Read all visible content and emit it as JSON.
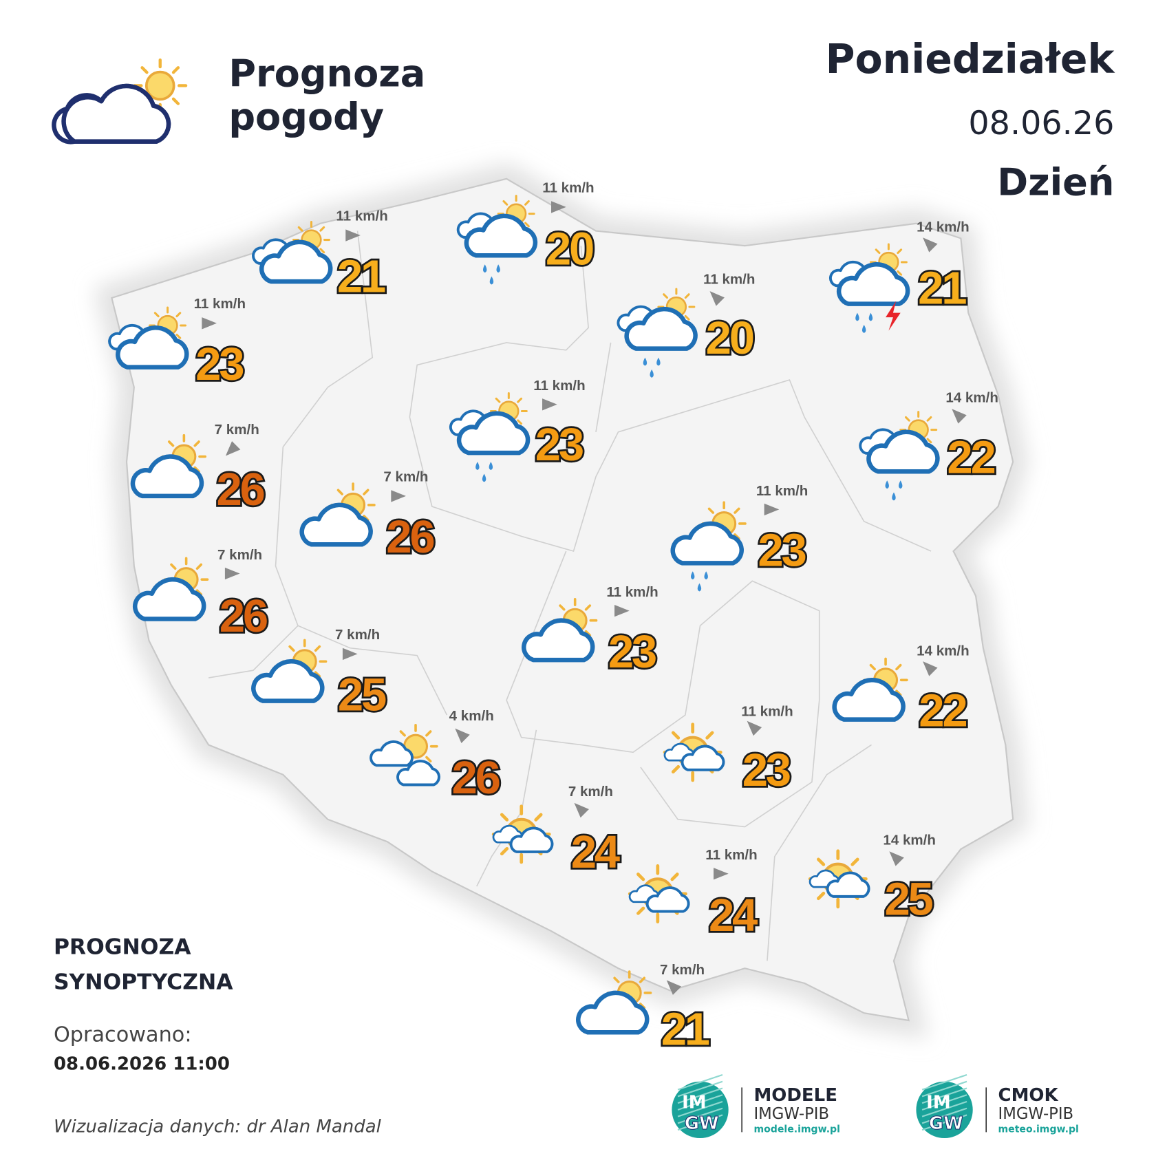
{
  "header": {
    "title": [
      "Prognoza",
      "pogody"
    ],
    "day": "Poniedziałek",
    "date": "08.06.26",
    "period": "Dzień"
  },
  "locations": [
    {
      "wind": "11 km/h",
      "temperature": 21
    },
    {
      "wind": "11 km/h",
      "temperature": 20
    },
    {
      "wind": "11 km/h",
      "temperature": 23
    },
    {
      "wind": "11 km/h",
      "temperature": 20
    },
    {
      "wind": "14 km/h",
      "temperature": 21
    },
    {
      "wind": "11 km/h",
      "temperature": 23
    },
    {
      "wind": "14 km/h",
      "temperature": 22
    },
    {
      "wind": "7 km/h",
      "temperature": 26
    },
    {
      "wind": "7 km/h",
      "temperature": 26
    },
    {
      "wind": "11 km/h",
      "temperature": 23
    },
    {
      "wind": "7 km/h",
      "temperature": 26
    },
    {
      "wind": "11 km/h",
      "temperature": 23
    },
    {
      "wind": "7 km/h",
      "temperature": 25
    },
    {
      "wind": "14 km/h",
      "temperature": 22
    },
    {
      "wind": "4 km/h",
      "temperature": 26
    },
    {
      "wind": "11 km/h",
      "temperature": 23
    },
    {
      "wind": "7 km/h",
      "temperature": 24
    },
    {
      "wind": "11 km/h",
      "temperature": 24
    },
    {
      "wind": "14 km/h",
      "temperature": 25
    },
    {
      "wind": "7 km/h",
      "temperature": 21
    }
  ],
  "footer": {
    "heading": [
      "PROGNOZA",
      "SYNOPTYCZNA"
    ],
    "prepared_label": "Opracowano:",
    "prepared_at": "08.06.2026 11:00",
    "credit": "Wizualizacja danych: dr Alan Mandal"
  },
  "logos": [
    {
      "mark": [
        "IM",
        "GW"
      ],
      "name": "MODELE",
      "org": "IMGW-PIB",
      "url": "modele.imgw.pl"
    },
    {
      "mark": [
        "IM",
        "GW"
      ],
      "name": "CMOK",
      "org": "IMGW-PIB",
      "url": "meteo.imgw.pl"
    }
  ]
}
